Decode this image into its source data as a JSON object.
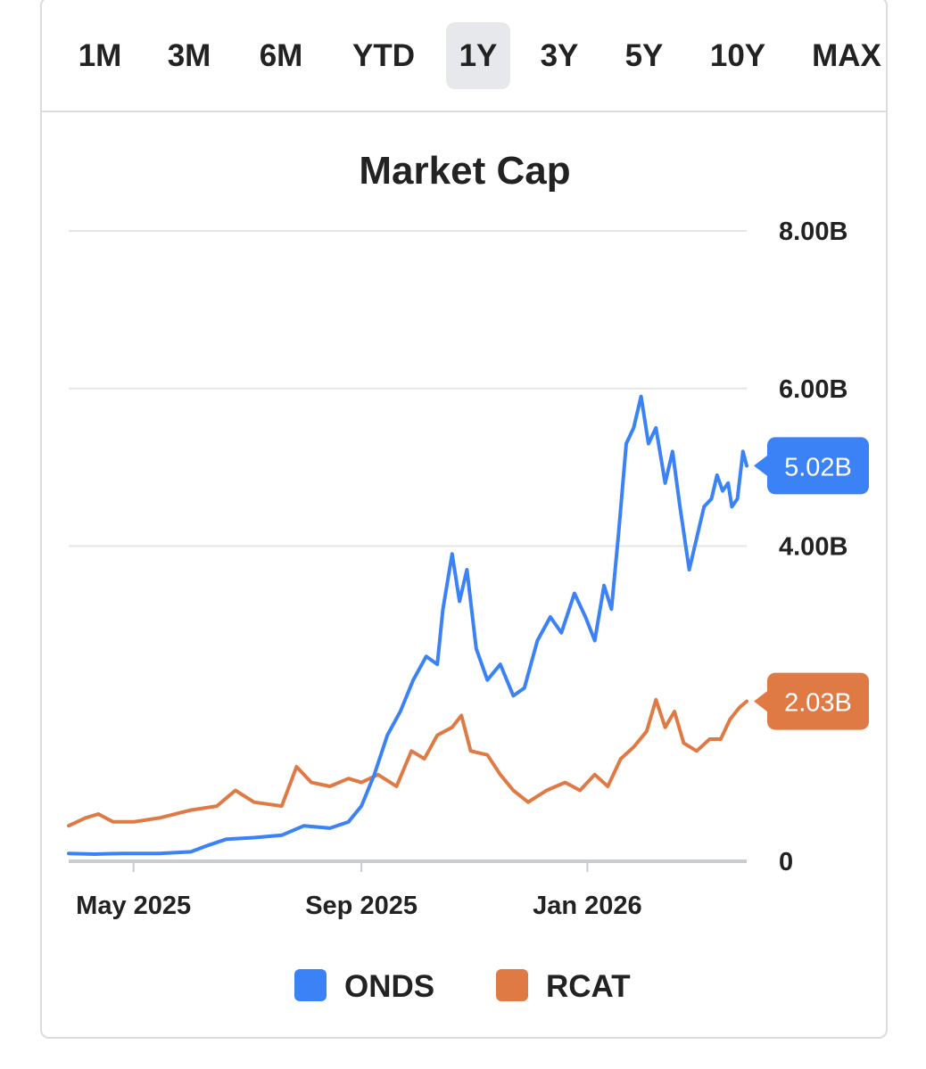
{
  "range_selector": {
    "items": [
      {
        "label": "1M"
      },
      {
        "label": "3M"
      },
      {
        "label": "6M"
      },
      {
        "label": "YTD"
      },
      {
        "label": "1Y"
      },
      {
        "label": "3Y"
      },
      {
        "label": "5Y"
      },
      {
        "label": "10Y"
      },
      {
        "label": "MAX"
      }
    ],
    "selected": "1Y"
  },
  "chart_data": {
    "type": "line",
    "title": "Market Cap",
    "xlabel": "",
    "ylabel": "",
    "x_range": [
      "2025-03-27",
      "2026-03-28"
    ],
    "x_ticks": [
      {
        "date": "2025-05-01",
        "label": "May 2025"
      },
      {
        "date": "2025-09-01",
        "label": "Sep 2025"
      },
      {
        "date": "2026-01-01",
        "label": "Jan 2026"
      }
    ],
    "ylim": [
      0,
      8
    ],
    "y_unit": "B",
    "y_ticks": [
      {
        "value": 0,
        "label": "0"
      },
      {
        "value": 4,
        "label": "4.00B"
      },
      {
        "value": 6,
        "label": "6.00B"
      },
      {
        "value": 8,
        "label": "8.00B"
      }
    ],
    "grid": true,
    "legend_position": "bottom",
    "series": [
      {
        "name": "ONDS",
        "color": "#3b82f6",
        "last_value_label": "5.02B",
        "points": [
          [
            "2025-03-27",
            0.1
          ],
          [
            "2025-04-10",
            0.09
          ],
          [
            "2025-04-25",
            0.1
          ],
          [
            "2025-05-15",
            0.1
          ],
          [
            "2025-06-01",
            0.12
          ],
          [
            "2025-06-10",
            0.2
          ],
          [
            "2025-06-20",
            0.28
          ],
          [
            "2025-07-05",
            0.3
          ],
          [
            "2025-07-20",
            0.33
          ],
          [
            "2025-08-01",
            0.45
          ],
          [
            "2025-08-15",
            0.42
          ],
          [
            "2025-08-25",
            0.5
          ],
          [
            "2025-09-01",
            0.7
          ],
          [
            "2025-09-08",
            1.1
          ],
          [
            "2025-09-15",
            1.6
          ],
          [
            "2025-09-22",
            1.9
          ],
          [
            "2025-09-29",
            2.3
          ],
          [
            "2025-10-06",
            2.6
          ],
          [
            "2025-10-12",
            2.5
          ],
          [
            "2025-10-15",
            3.2
          ],
          [
            "2025-10-20",
            3.9
          ],
          [
            "2025-10-24",
            3.3
          ],
          [
            "2025-10-28",
            3.7
          ],
          [
            "2025-11-02",
            2.7
          ],
          [
            "2025-11-08",
            2.3
          ],
          [
            "2025-11-15",
            2.5
          ],
          [
            "2025-11-22",
            2.1
          ],
          [
            "2025-11-28",
            2.2
          ],
          [
            "2025-12-05",
            2.8
          ],
          [
            "2025-12-12",
            3.1
          ],
          [
            "2025-12-18",
            2.9
          ],
          [
            "2025-12-25",
            3.4
          ],
          [
            "2025-12-31",
            3.1
          ],
          [
            "2026-01-05",
            2.8
          ],
          [
            "2026-01-10",
            3.5
          ],
          [
            "2026-01-14",
            3.2
          ],
          [
            "2026-01-18",
            4.2
          ],
          [
            "2026-01-22",
            5.3
          ],
          [
            "2026-01-26",
            5.5
          ],
          [
            "2026-01-30",
            5.9
          ],
          [
            "2026-02-03",
            5.3
          ],
          [
            "2026-02-07",
            5.5
          ],
          [
            "2026-02-12",
            4.8
          ],
          [
            "2026-02-16",
            5.2
          ],
          [
            "2026-02-20",
            4.5
          ],
          [
            "2026-02-25",
            3.7
          ],
          [
            "2026-03-01",
            4.1
          ],
          [
            "2026-03-05",
            4.5
          ],
          [
            "2026-03-09",
            4.6
          ],
          [
            "2026-03-12",
            4.9
          ],
          [
            "2026-03-15",
            4.7
          ],
          [
            "2026-03-18",
            4.8
          ],
          [
            "2026-03-20",
            4.5
          ],
          [
            "2026-03-23",
            4.6
          ],
          [
            "2026-03-26",
            5.2
          ],
          [
            "2026-03-28",
            5.02
          ]
        ]
      },
      {
        "name": "RCAT",
        "color": "#e07a45",
        "last_value_label": "2.03B",
        "points": [
          [
            "2025-03-27",
            0.45
          ],
          [
            "2025-04-05",
            0.55
          ],
          [
            "2025-04-12",
            0.6
          ],
          [
            "2025-04-20",
            0.5
          ],
          [
            "2025-05-01",
            0.5
          ],
          [
            "2025-05-15",
            0.55
          ],
          [
            "2025-06-01",
            0.65
          ],
          [
            "2025-06-15",
            0.7
          ],
          [
            "2025-06-25",
            0.9
          ],
          [
            "2025-07-05",
            0.75
          ],
          [
            "2025-07-20",
            0.7
          ],
          [
            "2025-07-28",
            1.2
          ],
          [
            "2025-08-05",
            1.0
          ],
          [
            "2025-08-15",
            0.95
          ],
          [
            "2025-08-25",
            1.05
          ],
          [
            "2025-09-01",
            1.0
          ],
          [
            "2025-09-10",
            1.1
          ],
          [
            "2025-09-20",
            0.95
          ],
          [
            "2025-09-28",
            1.4
          ],
          [
            "2025-10-05",
            1.3
          ],
          [
            "2025-10-12",
            1.6
          ],
          [
            "2025-10-20",
            1.7
          ],
          [
            "2025-10-25",
            1.85
          ],
          [
            "2025-10-30",
            1.4
          ],
          [
            "2025-11-08",
            1.35
          ],
          [
            "2025-11-15",
            1.1
          ],
          [
            "2025-11-22",
            0.9
          ],
          [
            "2025-11-30",
            0.75
          ],
          [
            "2025-12-10",
            0.9
          ],
          [
            "2025-12-20",
            1.0
          ],
          [
            "2025-12-28",
            0.9
          ],
          [
            "2026-01-05",
            1.1
          ],
          [
            "2026-01-12",
            0.95
          ],
          [
            "2026-01-19",
            1.3
          ],
          [
            "2026-01-26",
            1.45
          ],
          [
            "2026-02-02",
            1.65
          ],
          [
            "2026-02-07",
            2.05
          ],
          [
            "2026-02-12",
            1.7
          ],
          [
            "2026-02-17",
            1.9
          ],
          [
            "2026-02-22",
            1.5
          ],
          [
            "2026-03-01",
            1.4
          ],
          [
            "2026-03-08",
            1.55
          ],
          [
            "2026-03-14",
            1.55
          ],
          [
            "2026-03-19",
            1.8
          ],
          [
            "2026-03-24",
            1.95
          ],
          [
            "2026-03-28",
            2.03
          ]
        ]
      }
    ]
  }
}
